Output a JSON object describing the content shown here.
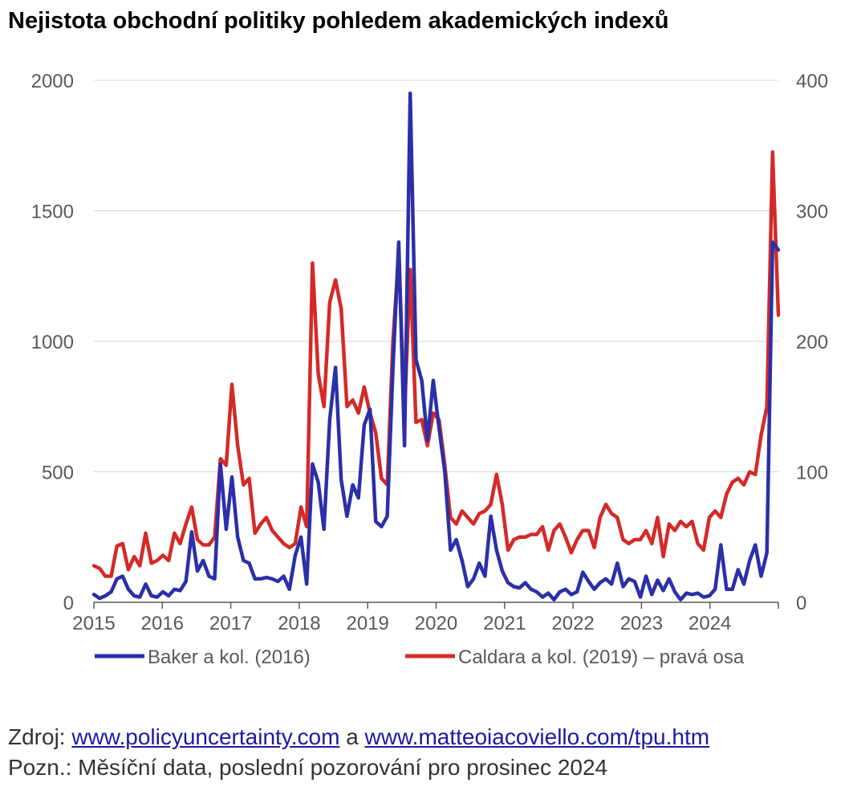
{
  "title": "Nejistota obchodní politiky pohledem akademických indexů",
  "source": {
    "prefix": "Zdroj:",
    "link1": "www.policyuncertainty.com",
    "connector": "a",
    "link2": "www.matteoiacoviello.com/tpu.htm"
  },
  "note": "Pozn.: Měsíční data, poslední pozorování pro prosinec 2024",
  "colors": {
    "baker": "#2b2fa8",
    "caldara": "#d42a27",
    "grid": "#d9d9d9",
    "axis": "#595959"
  },
  "chart_data": {
    "type": "line",
    "x_start": "2015-01",
    "x_end": "2024-12",
    "frequency": "monthly",
    "x_ticks": [
      "2015",
      "2016",
      "2017",
      "2018",
      "2019",
      "2020",
      "2021",
      "2022",
      "2023",
      "2024"
    ],
    "y_left": {
      "ylim": [
        0,
        2000
      ],
      "ticks": [
        "0",
        "500",
        "1000",
        "1500",
        "2000"
      ]
    },
    "y_right": {
      "ylim": [
        0,
        400
      ],
      "ticks": [
        "0",
        "100",
        "200",
        "300",
        "400"
      ]
    },
    "grid": true,
    "legend_placement": "bottom",
    "series": [
      {
        "name": "Baker a kol. (2016)",
        "axis": "left",
        "values": [
          30,
          15,
          25,
          40,
          90,
          100,
          50,
          25,
          20,
          70,
          25,
          20,
          40,
          25,
          50,
          45,
          80,
          270,
          120,
          160,
          100,
          90,
          530,
          280,
          480,
          250,
          160,
          150,
          90,
          90,
          95,
          90,
          80,
          100,
          50,
          180,
          250,
          70,
          530,
          460,
          280,
          700,
          900,
          470,
          330,
          450,
          400,
          680,
          740,
          310,
          290,
          330,
          900,
          1380,
          600,
          1950,
          930,
          850,
          620,
          850,
          670,
          500,
          200,
          240,
          160,
          60,
          90,
          150,
          100,
          330,
          200,
          120,
          75,
          60,
          55,
          75,
          50,
          40,
          20,
          35,
          10,
          40,
          50,
          30,
          40,
          115,
          80,
          50,
          75,
          90,
          70,
          150,
          60,
          90,
          80,
          20,
          100,
          30,
          85,
          45,
          90,
          40,
          10,
          35,
          30,
          35,
          20,
          25,
          50,
          220,
          50,
          50,
          125,
          70,
          160,
          220,
          100,
          190,
          1380,
          1350
        ]
      },
      {
        "name": "Caldara a kol. (2019) – pravá osa",
        "axis": "right",
        "values": [
          28,
          26,
          20,
          20,
          43,
          45,
          25,
          35,
          28,
          53,
          30,
          32,
          36,
          32,
          53,
          45,
          60,
          73,
          48,
          44,
          44,
          50,
          110,
          105,
          167,
          120,
          90,
          95,
          53,
          60,
          65,
          55,
          50,
          45,
          42,
          45,
          73,
          58,
          260,
          175,
          150,
          230,
          247,
          225,
          150,
          155,
          145,
          165,
          145,
          130,
          95,
          90,
          200,
          267,
          145,
          255,
          138,
          140,
          120,
          145,
          140,
          105,
          65,
          60,
          70,
          65,
          60,
          68,
          70,
          75,
          98,
          75,
          40,
          48,
          50,
          50,
          52,
          52,
          58,
          40,
          55,
          60,
          50,
          38,
          48,
          55,
          55,
          42,
          65,
          75,
          68,
          65,
          48,
          45,
          48,
          48,
          55,
          45,
          65,
          35,
          60,
          55,
          62,
          58,
          62,
          45,
          40,
          65,
          70,
          65,
          83,
          92,
          95,
          90,
          100,
          98,
          128,
          150,
          345,
          220
        ]
      }
    ]
  }
}
